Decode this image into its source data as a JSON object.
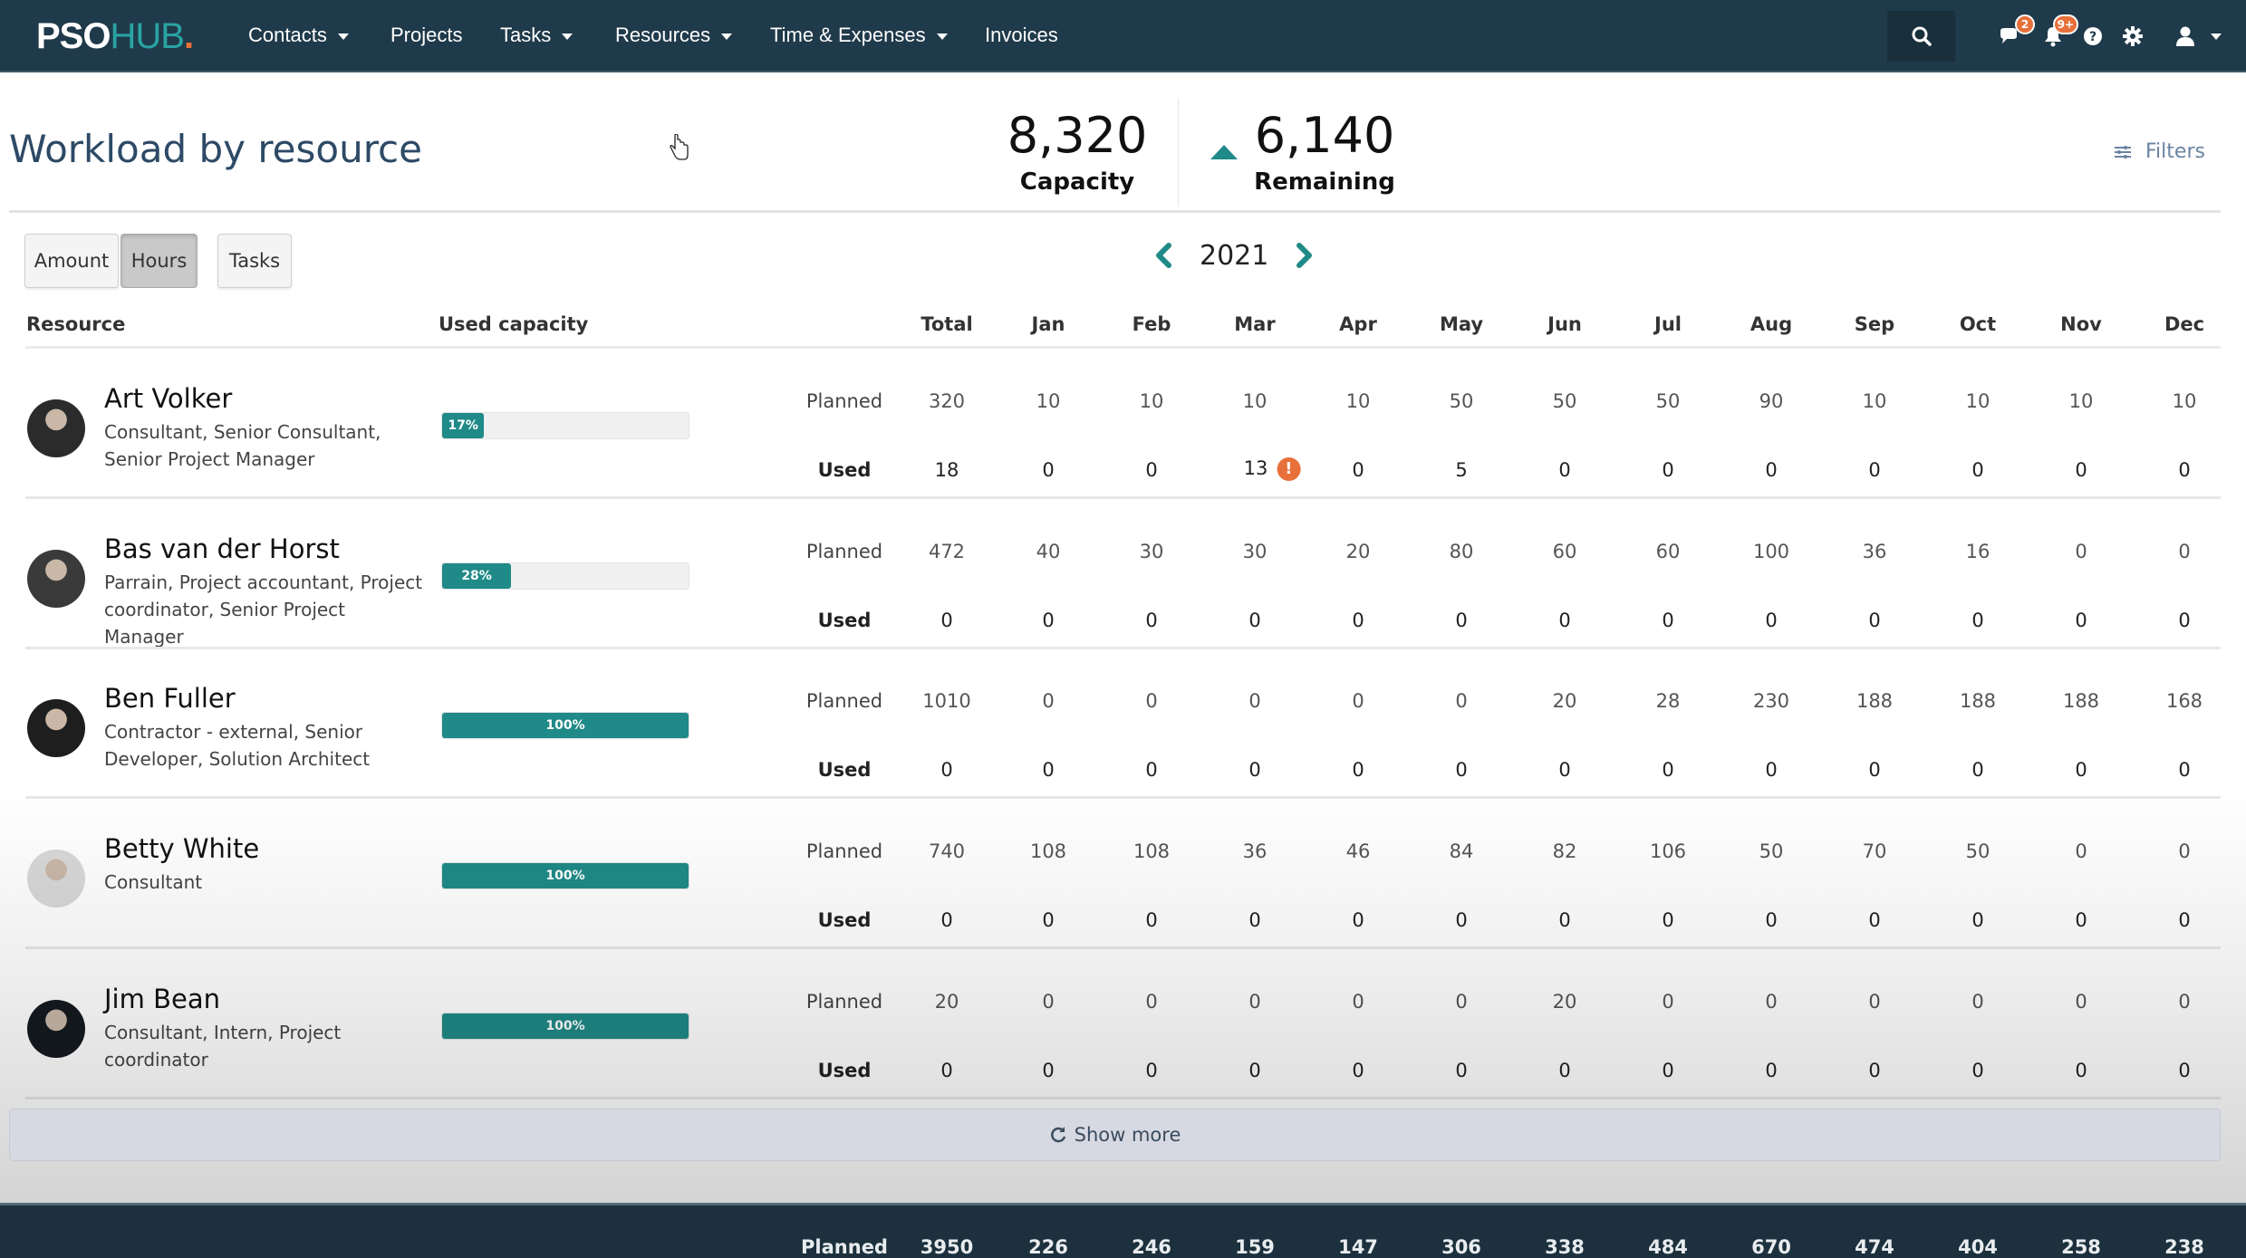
{
  "navbar": {
    "logo": {
      "part1": "PSO",
      "part2": "HUB",
      "dot": "."
    },
    "items": [
      {
        "label": "Contacts",
        "dropdown": true
      },
      {
        "label": "Projects",
        "dropdown": false
      },
      {
        "label": "Tasks",
        "dropdown": true
      },
      {
        "label": "Resources",
        "dropdown": true
      },
      {
        "label": "Time & Expenses",
        "dropdown": true
      },
      {
        "label": "Invoices",
        "dropdown": false
      }
    ],
    "icons": {
      "search": "search-icon",
      "chat": {
        "icon": "chat-icon",
        "badge": "2"
      },
      "notifications": {
        "icon": "bell-icon",
        "badge": "9+"
      },
      "help": "help-icon",
      "settings": "gear-icon",
      "user": "user-icon"
    }
  },
  "header": {
    "title": "Workload by resource",
    "capacity": {
      "value": "8,320",
      "label": "Capacity"
    },
    "remaining": {
      "value": "6,140",
      "label": "Remaining",
      "trend": "up"
    },
    "filters_label": "Filters"
  },
  "toolbar": {
    "modes": [
      {
        "label": "Amount",
        "active": false
      },
      {
        "label": "Hours",
        "active": true
      },
      {
        "label": "Tasks",
        "active": false
      }
    ],
    "year": "2021"
  },
  "table": {
    "headers": {
      "resource": "Resource",
      "used_capacity": "Used capacity",
      "total": "Total",
      "months": [
        "Jan",
        "Feb",
        "Mar",
        "Apr",
        "May",
        "Jun",
        "Jul",
        "Aug",
        "Sep",
        "Oct",
        "Nov",
        "Dec"
      ]
    },
    "row_labels": {
      "planned": "Planned",
      "used": "Used"
    },
    "rows": [
      {
        "name": "Art Volker",
        "roles": "Consultant, Senior Consultant, Senior Project Manager",
        "used_capacity": "17%",
        "used_pct": 17,
        "planned": {
          "total": "320",
          "months": [
            "10",
            "10",
            "10",
            "10",
            "50",
            "50",
            "50",
            "90",
            "10",
            "10",
            "10",
            "10"
          ]
        },
        "used": {
          "total": "18",
          "months": [
            "0",
            "0",
            "13",
            "0",
            "5",
            "0",
            "0",
            "0",
            "0",
            "0",
            "0",
            "0"
          ]
        },
        "warnings": {
          "used_month_index": 2,
          "icon": "!"
        }
      },
      {
        "name": "Bas van der Horst",
        "roles": "Parrain, Project accountant, Project coordinator, Senior Project Manager",
        "used_capacity": "28%",
        "used_pct": 28,
        "planned": {
          "total": "472",
          "months": [
            "40",
            "30",
            "30",
            "20",
            "80",
            "60",
            "60",
            "100",
            "36",
            "16",
            "0",
            "0"
          ]
        },
        "used": {
          "total": "0",
          "months": [
            "0",
            "0",
            "0",
            "0",
            "0",
            "0",
            "0",
            "0",
            "0",
            "0",
            "0",
            "0"
          ]
        }
      },
      {
        "name": "Ben Fuller",
        "roles": "Contractor - external, Senior Developer, Solution Architect",
        "used_capacity": "100%",
        "used_pct": 100,
        "planned": {
          "total": "1010",
          "months": [
            "0",
            "0",
            "0",
            "0",
            "0",
            "20",
            "28",
            "230",
            "188",
            "188",
            "188",
            "168"
          ]
        },
        "used": {
          "total": "0",
          "months": [
            "0",
            "0",
            "0",
            "0",
            "0",
            "0",
            "0",
            "0",
            "0",
            "0",
            "0",
            "0"
          ]
        }
      },
      {
        "name": "Betty White",
        "roles": "Consultant",
        "used_capacity": "100%",
        "used_pct": 100,
        "planned": {
          "total": "740",
          "months": [
            "108",
            "108",
            "36",
            "46",
            "84",
            "82",
            "106",
            "50",
            "70",
            "50",
            "0",
            "0"
          ]
        },
        "used": {
          "total": "0",
          "months": [
            "0",
            "0",
            "0",
            "0",
            "0",
            "0",
            "0",
            "0",
            "0",
            "0",
            "0",
            "0"
          ]
        }
      },
      {
        "name": "Jim Bean",
        "roles": "Consultant, Intern, Project coordinator",
        "used_capacity": "100%",
        "used_pct": 100,
        "planned": {
          "total": "20",
          "months": [
            "0",
            "0",
            "0",
            "0",
            "0",
            "20",
            "0",
            "0",
            "0",
            "0",
            "0",
            "0"
          ]
        },
        "used": {
          "total": "0",
          "months": [
            "0",
            "0",
            "0",
            "0",
            "0",
            "0",
            "0",
            "0",
            "0",
            "0",
            "0",
            "0"
          ]
        }
      }
    ],
    "show_more_label": "Show more",
    "footer": {
      "label": "Planned",
      "total": "3950",
      "months": [
        "226",
        "246",
        "159",
        "147",
        "306",
        "338",
        "484",
        "670",
        "474",
        "404",
        "258",
        "238"
      ]
    }
  },
  "colors": {
    "navbar": "#1f3a4a",
    "accent_teal": "#1f8a87",
    "warning_orange": "#e8703a",
    "title_blue": "#2d4a66"
  }
}
